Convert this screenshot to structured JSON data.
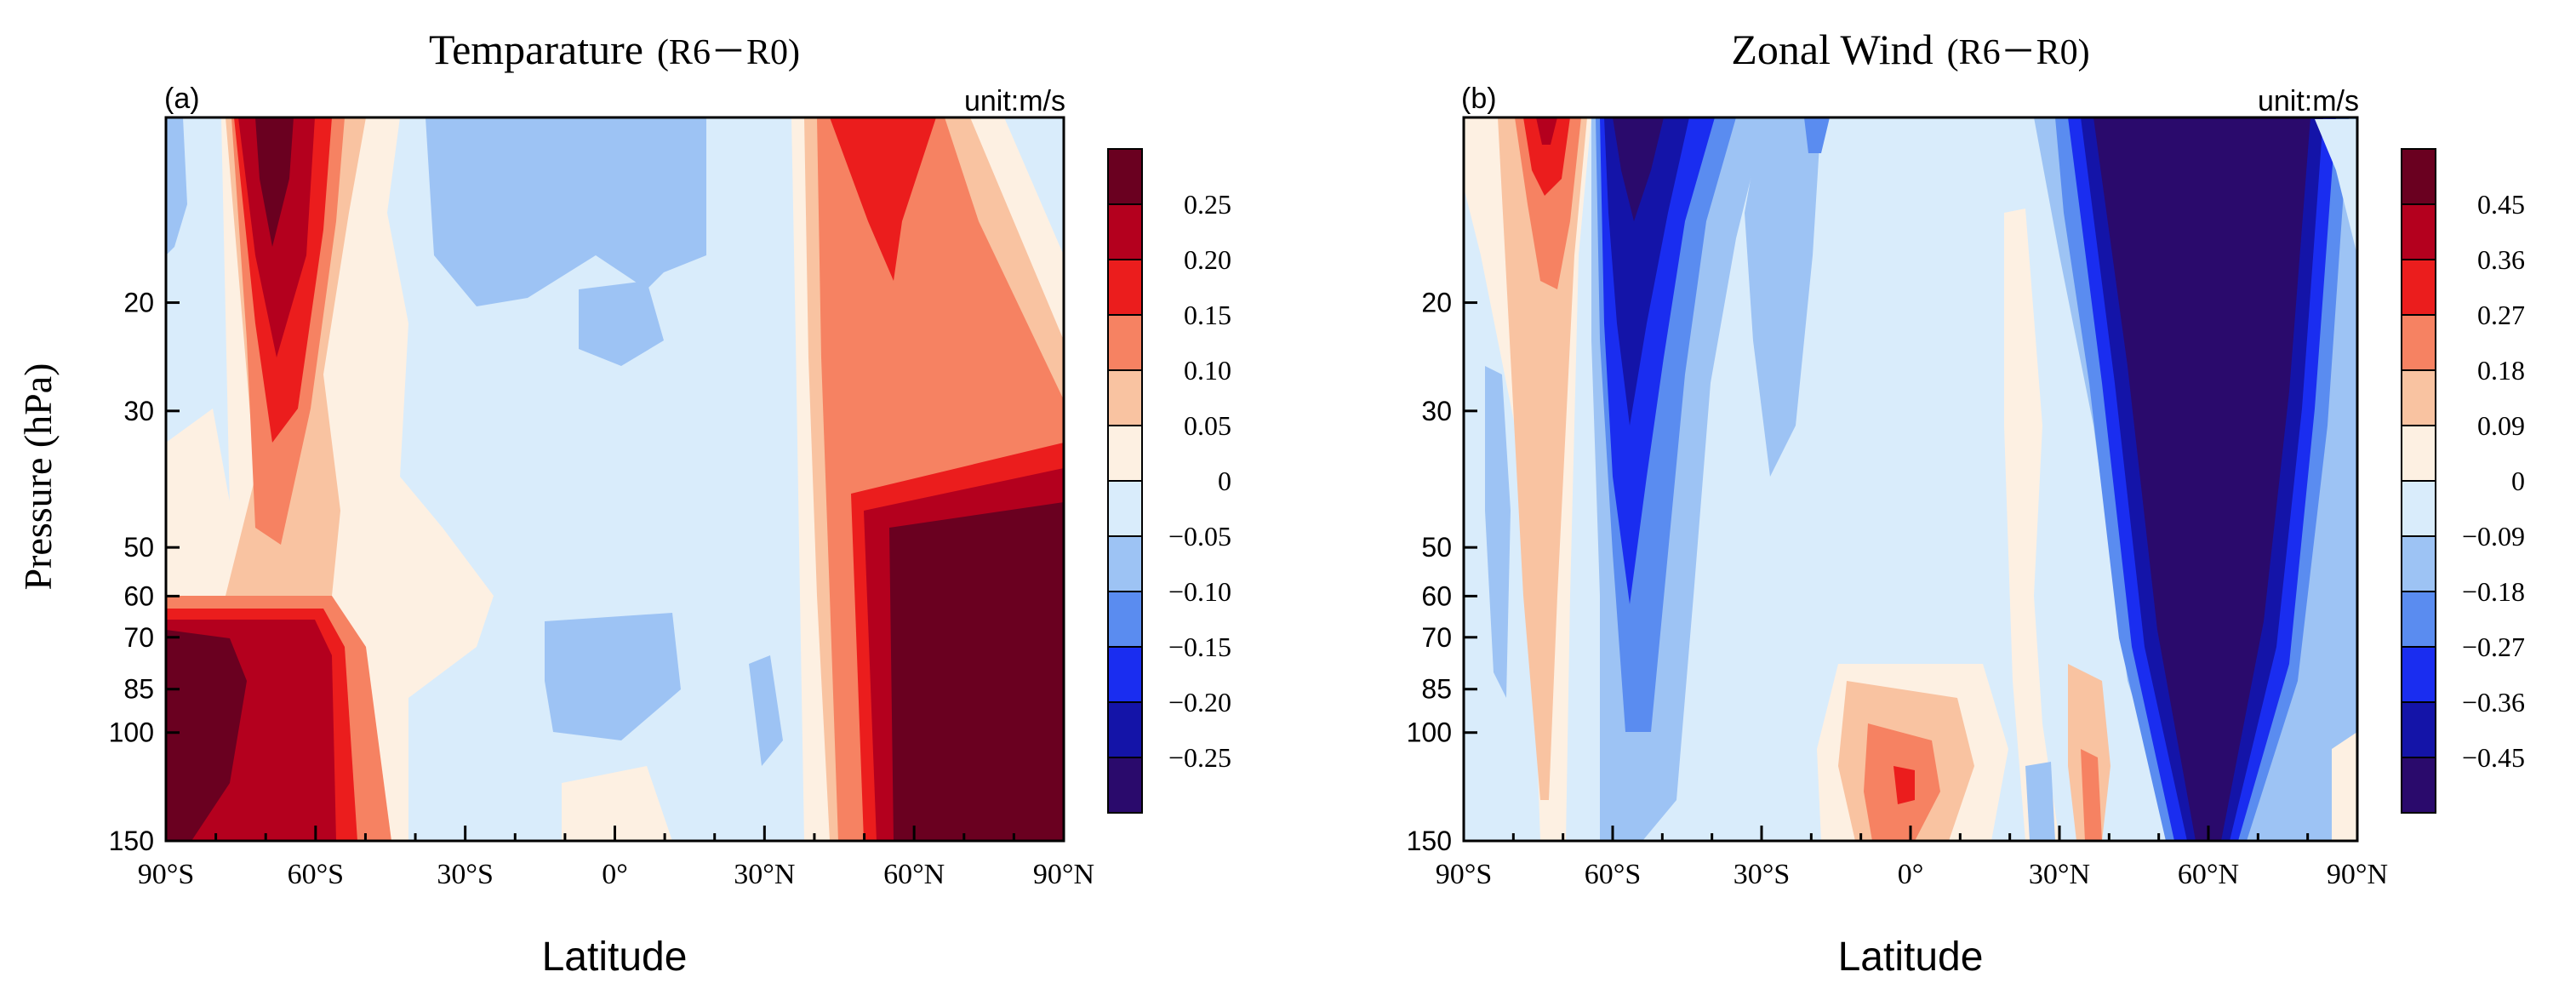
{
  "figure": {
    "y_axis_title": "Pressure (hPa)",
    "x_axis_title": "Latitude"
  },
  "chart_data": [
    {
      "type": "heatmap",
      "panel_label": "(a)",
      "title_main": "Temparature",
      "title_sub": "(R6－R0)",
      "unit_label": "unit:m/s",
      "xlabel": "Latitude",
      "ylabel": "Pressure (hPa)",
      "x_ticks": [
        "90°S",
        "60°S",
        "30°S",
        "0°",
        "30°N",
        "60°N",
        "90°N"
      ],
      "x_values": [
        -90,
        -60,
        -30,
        0,
        30,
        60,
        90
      ],
      "xlim": [
        -90,
        90
      ],
      "y_ticks": [
        "20",
        "30",
        "50",
        "60",
        "70",
        "85",
        "100",
        "150"
      ],
      "y_values": [
        20,
        30,
        50,
        60,
        70,
        85,
        100,
        150
      ],
      "ylim": [
        10,
        150
      ],
      "y_scale": "log",
      "colorbar_labels": [
        "0.25",
        "0.20",
        "0.15",
        "0.10",
        "0.05",
        "0",
        "−0.05",
        "−0.10",
        "−0.15",
        "−0.20",
        "−0.25"
      ],
      "colorbar_colors": [
        "#6a0020",
        "#b4001e",
        "#eb1d1d",
        "#f68262",
        "#f9c3a1",
        "#fdf0e2",
        "#d9ecfb",
        "#9dc3f4",
        "#5a8cf0",
        "#1a2df0",
        "#1414a8",
        "#2a0a6c"
      ]
    },
    {
      "type": "heatmap",
      "panel_label": "(b)",
      "title_main": "Zonal Wind",
      "title_sub": "(R6－R0)",
      "unit_label": "unit:m/s",
      "xlabel": "Latitude",
      "ylabel": "Pressure (hPa)",
      "x_ticks": [
        "90°S",
        "60°S",
        "30°S",
        "0°",
        "30°N",
        "60°N",
        "90°N"
      ],
      "x_values": [
        -90,
        -60,
        -30,
        0,
        30,
        60,
        90
      ],
      "xlim": [
        -90,
        90
      ],
      "y_ticks": [
        "20",
        "30",
        "50",
        "60",
        "70",
        "85",
        "100",
        "150"
      ],
      "y_values": [
        20,
        30,
        50,
        60,
        70,
        85,
        100,
        150
      ],
      "ylim": [
        10,
        150
      ],
      "y_scale": "log",
      "colorbar_labels": [
        "0.45",
        "0.36",
        "0.27",
        "0.18",
        "0.09",
        "0",
        "−0.09",
        "−0.18",
        "−0.27",
        "−0.36",
        "−0.45"
      ],
      "colorbar_colors": [
        "#6a0020",
        "#b4001e",
        "#eb1d1d",
        "#f68262",
        "#f9c3a1",
        "#fdf0e2",
        "#d9ecfb",
        "#9dc3f4",
        "#5a8cf0",
        "#1a2df0",
        "#1414a8",
        "#2a0a6c"
      ]
    }
  ]
}
